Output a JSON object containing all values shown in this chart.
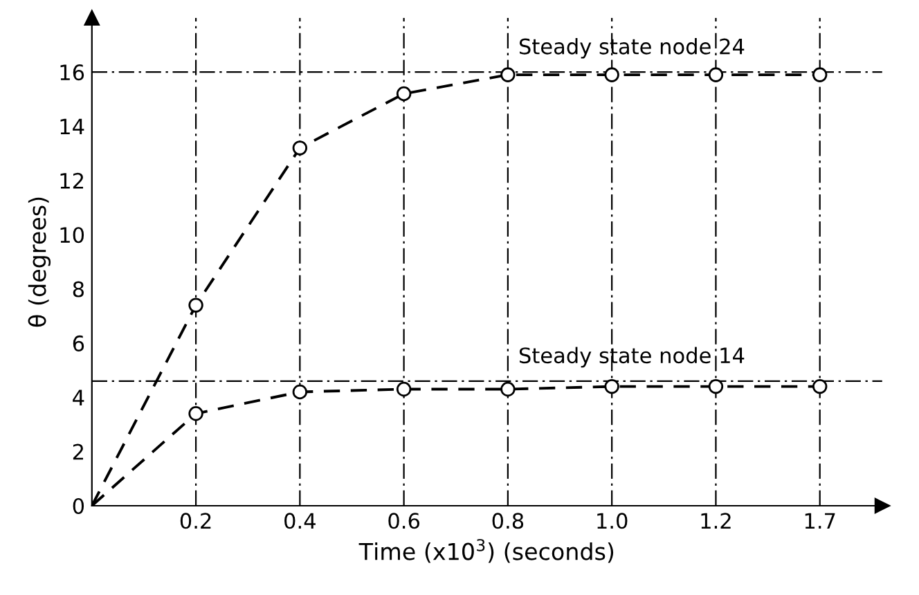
{
  "chart_data": {
    "type": "line",
    "xlabel": "Time (x10$^{3}$) (seconds)",
    "ylabel": "θ (degrees)",
    "categories": [
      null,
      "0.2",
      "0.4",
      "0.6",
      "0.8",
      "1.0",
      "1.2",
      "1.7"
    ],
    "series": [
      {
        "color": "#000000",
        "values": [
          0,
          7.4,
          13.2,
          15.2,
          15.9,
          15.9,
          15.9,
          15.9
        ]
      },
      {
        "color": "#000000",
        "values": [
          0,
          3.4,
          4.2,
          4.3,
          4.3,
          4.4,
          4.4,
          4.4
        ]
      }
    ],
    "ylim": [
      0,
      18
    ],
    "yticks": [
      0,
      2,
      4,
      6,
      8,
      10,
      12,
      14,
      16
    ],
    "ref_lines": [
      {
        "axis": "y",
        "value": 16,
        "label": "Steady state node 24",
        "line_style": "dashdot"
      },
      {
        "axis": "y",
        "value": 4.6,
        "label": "Steady state node 14",
        "line_style": "dashdot"
      }
    ],
    "grid": "x",
    "marker": "circle",
    "line_style": "dashed"
  }
}
